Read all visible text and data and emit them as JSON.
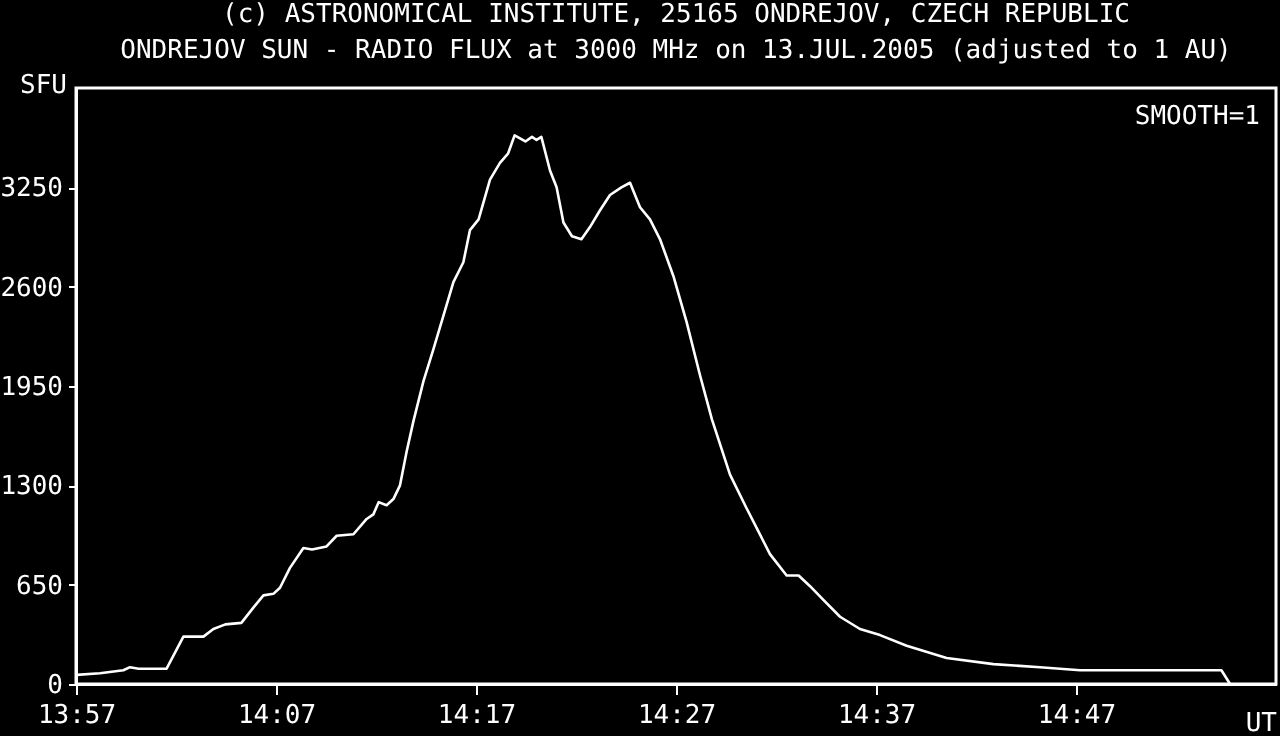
{
  "chart_data": {
    "type": "line",
    "title": "(c) ASTRONOMICAL INSTITUTE, 25165 ONDREJOV, CZECH REPUBLIC",
    "subtitle": "ONDREJOV SUN - RADIO FLUX at 3000 MHz on 13.JUL.2005 (adjusted to 1 AU)",
    "xlabel": "UT",
    "ylabel": "SFU",
    "annotations": [
      "SMOOTH=1"
    ],
    "x": [
      13.9505,
      13.97,
      13.9895,
      13.995,
      14.0022,
      14.0255,
      14.0395,
      14.0562,
      14.0645,
      14.0745,
      14.0878,
      14.0978,
      14.1062,
      14.1145,
      14.12,
      14.1283,
      14.1395,
      14.1467,
      14.1588,
      14.1672,
      14.1812,
      14.1922,
      14.1978,
      14.2022,
      14.2088,
      14.2145,
      14.22,
      14.2255,
      14.2312,
      14.2395,
      14.2478,
      14.2562,
      14.2645,
      14.2728,
      14.2783,
      14.2855,
      14.295,
      14.3033,
      14.31,
      14.3155,
      14.3245,
      14.33,
      14.3338,
      14.3378,
      14.345,
      14.3505,
      14.3562,
      14.3633,
      14.3712,
      14.3783,
      14.3867,
      14.395,
      14.4045,
      14.4117,
      14.42,
      14.4283,
      14.4367,
      14.4478,
      14.4588,
      14.47,
      14.48,
      14.495,
      14.5088,
      14.5283,
      14.5422,
      14.5522,
      14.5617,
      14.5728,
      14.5867,
      14.6033,
      14.62,
      14.6422,
      14.6755,
      14.7145,
      14.7533,
      14.7867,
      14.8422,
      14.9045,
      14.9117
    ],
    "series": [
      {
        "color": "#ffffff",
        "values": [
          60,
          70,
          90,
          110,
          100,
          100,
          310,
          310,
          360,
          390,
          400,
          500,
          580,
          590,
          630,
          760,
          890,
          880,
          900,
          970,
          980,
          1080,
          1110,
          1190,
          1170,
          1210,
          1300,
          1520,
          1720,
          1980,
          2190,
          2410,
          2630,
          2760,
          2970,
          3040,
          3300,
          3410,
          3470,
          3590,
          3550,
          3580,
          3560,
          3580,
          3360,
          3250,
          3020,
          2930,
          2910,
          2990,
          3100,
          3200,
          3250,
          3280,
          3120,
          3040,
          2910,
          2670,
          2370,
          2020,
          1730,
          1370,
          1150,
          850,
          710,
          710,
          640,
          550,
          440,
          360,
          320,
          250,
          170,
          130,
          110,
          90,
          90,
          90,
          0
        ]
      }
    ],
    "line_style": "solid",
    "xlim": [
      13.95,
      14.95
    ],
    "xticks": [
      {
        "value": 13.95,
        "label": "13:57"
      },
      {
        "value": 14.1167,
        "label": "14:07"
      },
      {
        "value": 14.2833,
        "label": "14:17"
      },
      {
        "value": 14.45,
        "label": "14:27"
      },
      {
        "value": 14.6167,
        "label": "14:37"
      },
      {
        "value": 14.7833,
        "label": "14:47"
      }
    ],
    "ylim": [
      0,
      3900
    ],
    "yticks": [
      0,
      650,
      1300,
      1950,
      2600,
      3250
    ]
  }
}
